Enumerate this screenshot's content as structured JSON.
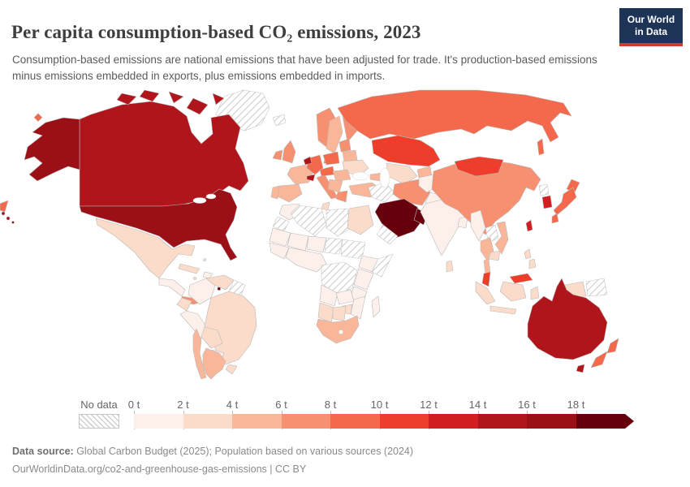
{
  "header": {
    "title": "Per capita consumption-based CO₂ emissions, 2023",
    "subtitle": "Consumption-based emissions are national emissions that have been adjusted for trade. It's production-based emissions minus emissions embedded in exports, plus emissions embedded in imports."
  },
  "logo": {
    "line1": "Our World",
    "line2": "in Data",
    "bg": "#1d3456",
    "stripe": "#d7362e"
  },
  "legend": {
    "no_data_label": "No data",
    "ticks": [
      "0 t",
      "2 t",
      "4 t",
      "6 t",
      "8 t",
      "10 t",
      "12 t",
      "14 t",
      "16 t",
      "18 t"
    ]
  },
  "footer": {
    "source_label": "Data source:",
    "source_text": " Global Carbon Budget (2025); Population based on various sources (2024)",
    "license_line": "OurWorldinData.org/co2-and-greenhouse-gas-emissions | CC BY"
  },
  "chart_data": {
    "type": "heatmap",
    "subtype": "choropleth-world-map",
    "title": "Per capita consumption-based CO₂ emissions",
    "year": 2023,
    "unit": "tonnes per person",
    "legend_bins": {
      "start": 0,
      "end": 18,
      "bin_size": 2,
      "open_ended_top": true
    },
    "colors": [
      "#fdf0eb",
      "#fbdbc9",
      "#f9b699",
      "#f69070",
      "#f4694b",
      "#ee3e2b",
      "#d21e20",
      "#b0151b",
      "#9a1016",
      "#67000d"
    ],
    "no_data_style": "gray-diagonal-hatch",
    "countries": [
      {
        "name": "United States",
        "value": 17.5
      },
      {
        "name": "Canada",
        "value": 15.5
      },
      {
        "name": "Greenland",
        "value": null
      },
      {
        "name": "Mexico",
        "value": 3.6
      },
      {
        "name": "Guatemala",
        "value": 1.2
      },
      {
        "name": "Panama",
        "value": 6.5
      },
      {
        "name": "Cuba",
        "value": 2.2
      },
      {
        "name": "Haiti",
        "value": 0.4
      },
      {
        "name": "Jamaica",
        "value": 2.6
      },
      {
        "name": "Bahamas",
        "value": null
      },
      {
        "name": "Trinidad and Tobago",
        "value": 21
      },
      {
        "name": "Colombia",
        "value": 1.9
      },
      {
        "name": "Venezuela",
        "value": 2.3
      },
      {
        "name": "Guyana",
        "value": null
      },
      {
        "name": "Ecuador",
        "value": 2.4
      },
      {
        "name": "Peru",
        "value": 1.9
      },
      {
        "name": "Brazil",
        "value": 2.6
      },
      {
        "name": "Bolivia",
        "value": 2.3
      },
      {
        "name": "Paraguay",
        "value": 1.3
      },
      {
        "name": "Uruguay",
        "value": 2.7
      },
      {
        "name": "Argentina",
        "value": 4.6
      },
      {
        "name": "Chile",
        "value": 4.8
      },
      {
        "name": "Iceland",
        "value": null
      },
      {
        "name": "Norway",
        "value": 7.2
      },
      {
        "name": "Sweden",
        "value": 5.5
      },
      {
        "name": "Finland",
        "value": 7.4
      },
      {
        "name": "Denmark",
        "value": 8.2
      },
      {
        "name": "United Kingdom",
        "value": 6.9
      },
      {
        "name": "Ireland",
        "value": 7.8
      },
      {
        "name": "France",
        "value": 5.9
      },
      {
        "name": "Spain",
        "value": 5.4
      },
      {
        "name": "Portugal",
        "value": 5.1
      },
      {
        "name": "Germany",
        "value": 9.2
      },
      {
        "name": "Belgium",
        "value": 14.8
      },
      {
        "name": "Switzerland",
        "value": 14.2
      },
      {
        "name": "Italy",
        "value": 6.4
      },
      {
        "name": "Austria",
        "value": 9.0
      },
      {
        "name": "Poland",
        "value": 8.6
      },
      {
        "name": "Lithuania",
        "value": 7.0
      },
      {
        "name": "Belarus",
        "value": 5.2
      },
      {
        "name": "Ukraine",
        "value": 2.9
      },
      {
        "name": "Romania",
        "value": 4.4
      },
      {
        "name": "Serbia",
        "value": 4.8
      },
      {
        "name": "Greece",
        "value": 6.6
      },
      {
        "name": "Turkey",
        "value": 5.7
      },
      {
        "name": "Russia",
        "value": 9.6
      },
      {
        "name": "Kazakhstan",
        "value": 11.2
      },
      {
        "name": "Uzbekistan",
        "value": 3.4
      },
      {
        "name": "Kyrgyzstan",
        "value": 4.2
      },
      {
        "name": "Georgia",
        "value": 4.5
      },
      {
        "name": "Iraq",
        "value": null
      },
      {
        "name": "Iran",
        "value": 7.6
      },
      {
        "name": "Afghanistan",
        "value": 0.3
      },
      {
        "name": "Pakistan",
        "value": 0.9
      },
      {
        "name": "Saudi Arabia",
        "value": 20.5
      },
      {
        "name": "Oman",
        "value": 18.9
      },
      {
        "name": "Yemen",
        "value": null
      },
      {
        "name": "Egypt",
        "value": 2.3
      },
      {
        "name": "Libya",
        "value": null
      },
      {
        "name": "Algeria",
        "value": null
      },
      {
        "name": "Tunisia",
        "value": 2.8
      },
      {
        "name": "Morocco",
        "value": 1.9
      },
      {
        "name": "Western Sahara",
        "value": null
      },
      {
        "name": "Mauritania",
        "value": 1.0
      },
      {
        "name": "Mali",
        "value": 0.3
      },
      {
        "name": "Niger",
        "value": 0.2
      },
      {
        "name": "Chad",
        "value": null
      },
      {
        "name": "Sudan",
        "value": null
      },
      {
        "name": "Guinea",
        "value": 0.4
      },
      {
        "name": "Nigeria",
        "value": 0.6
      },
      {
        "name": "Ethiopia",
        "value": 0.2
      },
      {
        "name": "Somalia",
        "value": null
      },
      {
        "name": "Kenya",
        "value": 0.4
      },
      {
        "name": "Democratic Republic of Congo",
        "value": null
      },
      {
        "name": "Tanzania",
        "value": 0.3
      },
      {
        "name": "Angola",
        "value": 0.7
      },
      {
        "name": "Zambia",
        "value": 0.4
      },
      {
        "name": "Zimbabwe",
        "value": 2.1
      },
      {
        "name": "Mozambique",
        "value": 0.3
      },
      {
        "name": "Namibia",
        "value": 2.4
      },
      {
        "name": "Botswana",
        "value": 2.9
      },
      {
        "name": "South Africa",
        "value": 5.3
      },
      {
        "name": "Madagascar",
        "value": 0.2
      },
      {
        "name": "India",
        "value": 1.9
      },
      {
        "name": "Bangladesh",
        "value": 0.7
      },
      {
        "name": "Sri Lanka",
        "value": 2.1
      },
      {
        "name": "China",
        "value": 7.8
      },
      {
        "name": "Mongolia",
        "value": 11.5
      },
      {
        "name": "North Korea",
        "value": null
      },
      {
        "name": "South Korea",
        "value": 13.6
      },
      {
        "name": "Japan",
        "value": 8.9
      },
      {
        "name": "Taiwan",
        "value": 13.2
      },
      {
        "name": "Myanmar",
        "value": 0.7
      },
      {
        "name": "Laos",
        "value": null
      },
      {
        "name": "Vietnam",
        "value": 4.4
      },
      {
        "name": "Thailand",
        "value": 4.6
      },
      {
        "name": "Cambodia",
        "value": 2.2
      },
      {
        "name": "Malaysia",
        "value": 10.6
      },
      {
        "name": "Indonesia",
        "value": 2.5
      },
      {
        "name": "Philippines",
        "value": 2.1
      },
      {
        "name": "Papua New Guinea",
        "value": null
      },
      {
        "name": "Australia",
        "value": 15.2
      },
      {
        "name": "New Zealand",
        "value": 9.0
      }
    ]
  }
}
